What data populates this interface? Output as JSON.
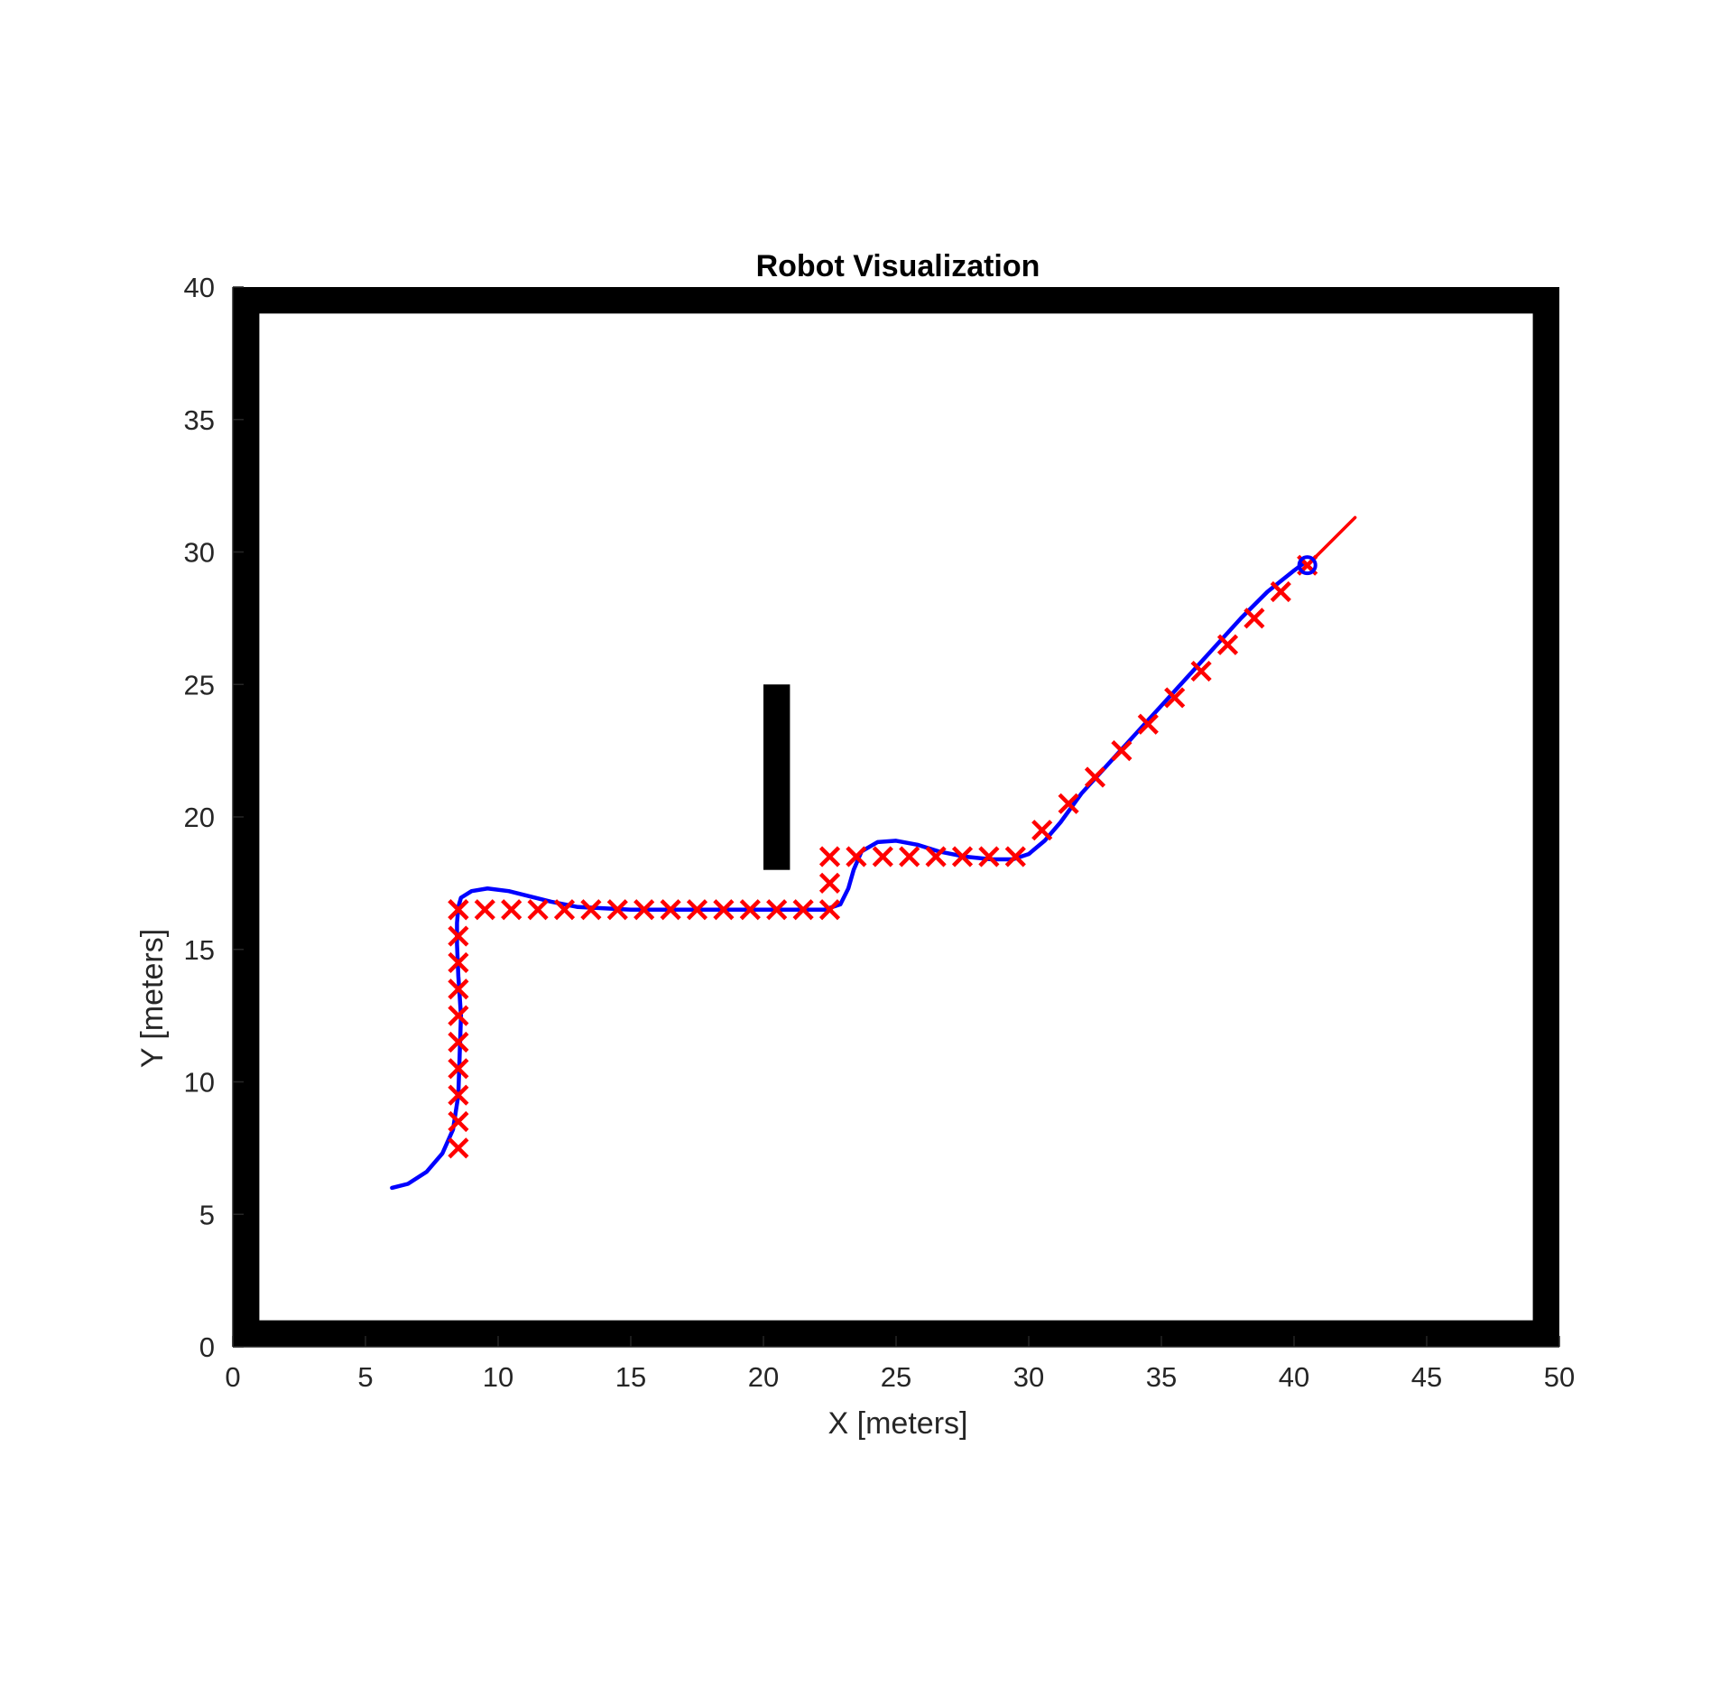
{
  "chart_data": {
    "type": "line",
    "title": "Robot Visualization",
    "xlabel": "X [meters]",
    "ylabel": "Y [meters]",
    "xlim": [
      0,
      50
    ],
    "ylim": [
      0,
      40
    ],
    "xticks": [
      "0",
      "5",
      "10",
      "15",
      "20",
      "25",
      "30",
      "35",
      "40",
      "45",
      "50"
    ],
    "yticks": [
      "0",
      "5",
      "10",
      "15",
      "20",
      "25",
      "30",
      "35",
      "40"
    ],
    "grid": false,
    "legend": "none",
    "colors": {
      "robot_path": "#0000ff",
      "waypoints": "#ff0000",
      "heading": "#ff0000",
      "obstacles": "#000000"
    },
    "obstacles": [
      {
        "x": [
          0,
          50
        ],
        "y": [
          39,
          40
        ]
      },
      {
        "x": [
          0,
          50
        ],
        "y": [
          0,
          1
        ]
      },
      {
        "x": [
          0,
          1
        ],
        "y": [
          0,
          40
        ]
      },
      {
        "x": [
          49,
          50
        ],
        "y": [
          0,
          40
        ]
      },
      {
        "x": [
          20,
          21
        ],
        "y": [
          18,
          25
        ]
      }
    ],
    "series": [
      {
        "marker": "line",
        "x": [
          6.0,
          6.6,
          7.3,
          7.9,
          8.3,
          8.5,
          8.55,
          8.6,
          8.5,
          8.45,
          8.45,
          8.5,
          8.6,
          9.0,
          9.6,
          10.4,
          11.2,
          12.0,
          13.0,
          15.0,
          17.0,
          19.0,
          21.0,
          22.3,
          22.9,
          23.2,
          23.4,
          23.7,
          24.3,
          25.0,
          25.8,
          26.6,
          27.6,
          28.6,
          29.4,
          30.0,
          30.6,
          31.2,
          32.0,
          33.0,
          34.0,
          35.0,
          36.0,
          37.0,
          38.0,
          39.0,
          40.0,
          40.4
        ],
        "y": [
          6.0,
          6.15,
          6.6,
          7.3,
          8.2,
          9.5,
          11.0,
          12.5,
          14.0,
          15.2,
          16.0,
          16.6,
          16.95,
          17.2,
          17.3,
          17.2,
          17.0,
          16.8,
          16.6,
          16.5,
          16.5,
          16.5,
          16.5,
          16.5,
          16.7,
          17.3,
          18.0,
          18.7,
          19.05,
          19.1,
          18.95,
          18.7,
          18.5,
          18.4,
          18.4,
          18.6,
          19.1,
          19.8,
          20.9,
          22.0,
          23.1,
          24.2,
          25.3,
          26.4,
          27.5,
          28.5,
          29.3,
          29.6
        ]
      },
      {
        "marker": "x",
        "x": [
          8.5,
          8.5,
          8.5,
          8.5,
          8.5,
          8.5,
          8.5,
          8.5,
          8.5,
          8.5,
          8.5,
          9.5,
          10.5,
          11.5,
          12.5,
          13.5,
          14.5,
          15.5,
          16.5,
          17.5,
          18.5,
          19.5,
          20.5,
          21.5,
          22.5,
          22.5,
          22.5,
          23.5,
          24.5,
          25.5,
          26.5,
          27.5,
          28.5,
          29.5,
          30.5,
          31.5,
          32.5,
          33.5,
          34.5,
          35.5,
          36.5,
          37.5,
          38.5,
          39.5,
          40.5
        ],
        "y": [
          7.5,
          8.5,
          9.5,
          10.5,
          11.5,
          12.5,
          13.5,
          14.5,
          15.5,
          16.5,
          16.5,
          16.5,
          16.5,
          16.5,
          16.5,
          16.5,
          16.5,
          16.5,
          16.5,
          16.5,
          16.5,
          16.5,
          16.5,
          16.5,
          16.5,
          17.5,
          18.5,
          18.5,
          18.5,
          18.5,
          18.5,
          18.5,
          18.5,
          18.5,
          19.5,
          20.5,
          21.5,
          22.5,
          23.5,
          24.5,
          25.5,
          26.5,
          27.5,
          28.5,
          29.5
        ]
      },
      {
        "marker": "line",
        "x": [
          40.5,
          42.3
        ],
        "y": [
          29.5,
          31.3
        ]
      },
      {
        "marker": "circle",
        "x": [
          40.5
        ],
        "y": [
          29.5
        ]
      }
    ]
  }
}
